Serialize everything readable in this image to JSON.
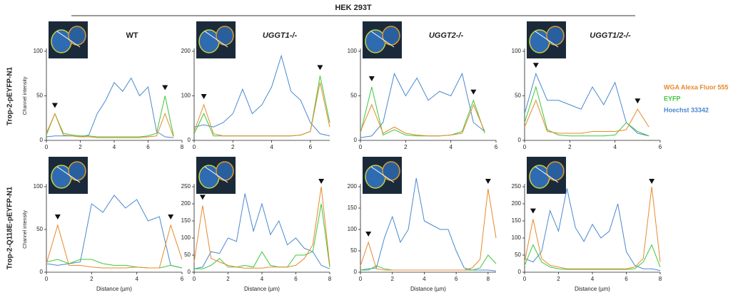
{
  "title": "HEK 293T",
  "row_labels": [
    "Trop-2-pEYFP-N1",
    "Trop-2-Q118E-pEYFP-N1"
  ],
  "chart_data": [
    {
      "type": "line",
      "title": "WT",
      "ylabel": "Channel intensity",
      "xlim": [
        0,
        8
      ],
      "xticks": [
        0,
        2,
        4,
        6,
        8
      ],
      "ylim": [
        0,
        100
      ],
      "yticks": [
        0,
        50,
        100
      ],
      "x": [
        0,
        0.5,
        1,
        1.5,
        2,
        2.5,
        3,
        3.5,
        4,
        4.5,
        5,
        5.5,
        6,
        6.5,
        7,
        7.5
      ],
      "series": [
        {
          "name": "WGA Alexa Fluor 555",
          "color": "#e8892b",
          "values": [
            8,
            30,
            6,
            5,
            4,
            4,
            3,
            3,
            3,
            3,
            3,
            3,
            4,
            5,
            30,
            4
          ]
        },
        {
          "name": "EYFP",
          "color": "#3cc83c",
          "values": [
            6,
            30,
            8,
            6,
            5,
            5,
            4,
            4,
            4,
            4,
            4,
            4,
            5,
            8,
            50,
            5
          ]
        },
        {
          "name": "Hoechst 33342",
          "color": "#4a88d0",
          "values": [
            4,
            5,
            5,
            5,
            4,
            6,
            30,
            45,
            65,
            55,
            70,
            50,
            60,
            10,
            4,
            3
          ]
        }
      ]
    },
    {
      "type": "line",
      "title": "UGGT1-/-",
      "xlim": [
        0,
        7
      ],
      "xticks": [
        0,
        2,
        4,
        6
      ],
      "ylim": [
        0,
        200
      ],
      "yticks": [
        0,
        100,
        200
      ],
      "x": [
        0,
        0.5,
        1,
        1.5,
        2,
        2.5,
        3,
        3.5,
        4,
        4.5,
        5,
        5.5,
        6,
        6.5,
        7
      ],
      "series": [
        {
          "name": "WGA Alexa Fluor 555",
          "color": "#e8892b",
          "values": [
            20,
            80,
            15,
            10,
            10,
            10,
            10,
            10,
            10,
            10,
            10,
            12,
            20,
            130,
            30
          ]
        },
        {
          "name": "EYFP",
          "color": "#3cc83c",
          "values": [
            15,
            60,
            10,
            10,
            10,
            10,
            10,
            10,
            10,
            10,
            10,
            12,
            20,
            145,
            40
          ]
        },
        {
          "name": "Hoechst 33342",
          "color": "#4a88d0",
          "values": [
            30,
            35,
            30,
            40,
            60,
            115,
            60,
            80,
            120,
            190,
            110,
            90,
            40,
            15,
            10
          ]
        }
      ]
    },
    {
      "type": "line",
      "title": "UGGT2-/-",
      "xlim": [
        0,
        6
      ],
      "xticks": [
        0,
        2,
        4,
        6
      ],
      "ylim": [
        0,
        100
      ],
      "yticks": [
        0,
        50,
        100
      ],
      "x": [
        0,
        0.5,
        1,
        1.5,
        2,
        2.5,
        3,
        3.5,
        4,
        4.5,
        5,
        5.5
      ],
      "series": [
        {
          "name": "WGA Alexa Fluor 555",
          "color": "#e8892b",
          "values": [
            10,
            40,
            8,
            15,
            8,
            6,
            5,
            5,
            6,
            8,
            40,
            10
          ]
        },
        {
          "name": "EYFP",
          "color": "#3cc83c",
          "values": [
            8,
            60,
            6,
            12,
            6,
            5,
            5,
            5,
            6,
            10,
            45,
            8
          ]
        },
        {
          "name": "Hoechst 33342",
          "color": "#4a88d0",
          "values": [
            3,
            5,
            20,
            75,
            50,
            70,
            45,
            55,
            50,
            75,
            20,
            10
          ]
        }
      ]
    },
    {
      "type": "line",
      "title": "UGGT1/2-/-",
      "xlim": [
        0,
        6
      ],
      "xticks": [
        0,
        2,
        4,
        6
      ],
      "ylim": [
        0,
        100
      ],
      "yticks": [
        0,
        50,
        100
      ],
      "x": [
        0,
        0.5,
        1,
        1.5,
        2,
        2.5,
        3,
        3.5,
        4,
        4.5,
        5,
        5.5
      ],
      "series": [
        {
          "name": "WGA Alexa Fluor 555",
          "color": "#e8892b",
          "values": [
            15,
            45,
            10,
            8,
            8,
            8,
            10,
            10,
            10,
            12,
            35,
            15
          ]
        },
        {
          "name": "EYFP",
          "color": "#3cc83c",
          "values": [
            20,
            60,
            12,
            6,
            5,
            5,
            5,
            5,
            6,
            20,
            10,
            5
          ]
        },
        {
          "name": "Hoechst 33342",
          "color": "#4a88d0",
          "values": [
            30,
            75,
            45,
            45,
            40,
            35,
            60,
            40,
            65,
            20,
            8,
            5
          ]
        }
      ]
    },
    {
      "type": "line",
      "ylabel": "Channel intensity",
      "xlabel": "Distance (µm)",
      "xlim": [
        0,
        6
      ],
      "xticks": [
        0,
        2,
        4,
        6
      ],
      "ylim": [
        0,
        100
      ],
      "yticks": [
        0,
        50,
        100
      ],
      "x": [
        0,
        0.5,
        1,
        1.5,
        2,
        2.5,
        3,
        3.5,
        4,
        4.5,
        5,
        5.5,
        6
      ],
      "series": [
        {
          "name": "WGA Alexa Fluor 555",
          "color": "#e8892b",
          "values": [
            10,
            55,
            8,
            8,
            6,
            5,
            5,
            5,
            6,
            5,
            5,
            55,
            15
          ]
        },
        {
          "name": "EYFP",
          "color": "#3cc83c",
          "values": [
            12,
            15,
            10,
            15,
            15,
            10,
            8,
            8,
            6,
            5,
            5,
            8,
            5
          ]
        },
        {
          "name": "Hoechst 33342",
          "color": "#4a88d0",
          "values": [
            10,
            8,
            10,
            12,
            80,
            70,
            90,
            75,
            85,
            60,
            65,
            8,
            5
          ]
        }
      ]
    },
    {
      "type": "line",
      "xlabel": "Distance (µm)",
      "xlim": [
        0,
        8
      ],
      "xticks": [
        0,
        2,
        4,
        6,
        8
      ],
      "ylim": [
        0,
        250
      ],
      "yticks": [
        0,
        50,
        100,
        150,
        200,
        250
      ],
      "x": [
        0,
        0.5,
        1,
        1.5,
        2,
        2.5,
        3,
        3.5,
        4,
        4.5,
        5,
        5.5,
        6,
        6.5,
        7,
        7.5,
        8
      ],
      "series": [
        {
          "name": "WGA Alexa Fluor 555",
          "color": "#e8892b",
          "values": [
            30,
            195,
            40,
            30,
            20,
            15,
            12,
            12,
            12,
            15,
            15,
            15,
            20,
            40,
            80,
            250,
            20
          ]
        },
        {
          "name": "EYFP",
          "color": "#3cc83c",
          "values": [
            10,
            10,
            20,
            40,
            15,
            15,
            20,
            15,
            60,
            20,
            15,
            15,
            50,
            50,
            60,
            200,
            15
          ]
        },
        {
          "name": "Hoechst 33342",
          "color": "#4a88d0",
          "values": [
            10,
            15,
            60,
            55,
            100,
            90,
            230,
            120,
            200,
            110,
            150,
            80,
            100,
            70,
            60,
            20,
            10
          ]
        }
      ]
    },
    {
      "type": "line",
      "xlabel": "Distance (µm)",
      "xlim": [
        0,
        8.5
      ],
      "xticks": [
        0,
        2,
        4,
        6,
        8
      ],
      "ylim": [
        0,
        200
      ],
      "yticks": [
        0,
        50,
        100,
        150,
        200
      ],
      "x": [
        0,
        0.5,
        1,
        1.5,
        2,
        2.5,
        3,
        3.5,
        4,
        4.5,
        5,
        5.5,
        6,
        6.5,
        7,
        7.5,
        8,
        8.5
      ],
      "series": [
        {
          "name": "WGA Alexa Fluor 555",
          "color": "#e8892b",
          "values": [
            15,
            70,
            8,
            5,
            5,
            5,
            5,
            5,
            5,
            5,
            5,
            5,
            5,
            5,
            10,
            30,
            195,
            80
          ]
        },
        {
          "name": "EYFP",
          "color": "#3cc83c",
          "values": [
            5,
            5,
            15,
            8,
            5,
            5,
            5,
            5,
            5,
            5,
            5,
            5,
            5,
            5,
            5,
            10,
            40,
            20
          ]
        },
        {
          "name": "Hoechst 33342",
          "color": "#4a88d0",
          "values": [
            5,
            8,
            10,
            80,
            130,
            70,
            100,
            220,
            120,
            110,
            100,
            100,
            50,
            10,
            5,
            5,
            5,
            3
          ]
        }
      ]
    },
    {
      "type": "line",
      "xlabel": "Distance (µm)",
      "xlim": [
        0,
        8
      ],
      "xticks": [
        0,
        2,
        4,
        6,
        8
      ],
      "ylim": [
        0,
        250
      ],
      "yticks": [
        0,
        50,
        100,
        150,
        200,
        250
      ],
      "x": [
        0,
        0.5,
        1,
        1.5,
        2,
        2.5,
        3,
        3.5,
        4,
        4.5,
        5,
        5.5,
        6,
        6.5,
        7,
        7.5,
        8
      ],
      "series": [
        {
          "name": "WGA Alexa Fluor 555",
          "color": "#e8892b",
          "values": [
            30,
            155,
            40,
            20,
            15,
            10,
            10,
            10,
            10,
            10,
            10,
            10,
            10,
            15,
            40,
            250,
            30
          ]
        },
        {
          "name": "EYFP",
          "color": "#3cc83c",
          "values": [
            20,
            80,
            30,
            15,
            10,
            8,
            8,
            8,
            8,
            8,
            8,
            8,
            8,
            10,
            30,
            80,
            15
          ]
        },
        {
          "name": "Hoechst 33342",
          "color": "#4a88d0",
          "values": [
            40,
            30,
            60,
            180,
            120,
            245,
            130,
            90,
            140,
            100,
            120,
            200,
            60,
            20,
            10,
            10,
            5
          ]
        }
      ]
    }
  ]
}
